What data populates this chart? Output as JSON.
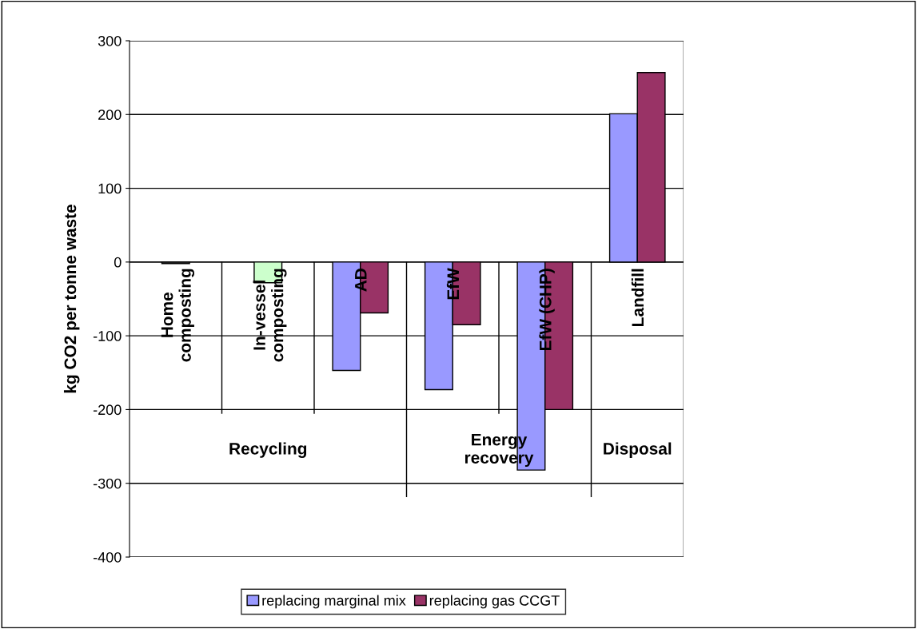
{
  "chart_data": {
    "type": "bar",
    "ylabel": "kg CO2 per tonne waste",
    "categories": [
      "Home\ncomposting",
      "In-vessel\ncomposting",
      "AD",
      "EfW",
      "EfW (CHP)",
      "Landfill"
    ],
    "series": [
      {
        "name": "replacing marginal mix",
        "color": "#9999ff",
        "values": [
          null,
          null,
          -147,
          -173,
          -282,
          201
        ]
      },
      {
        "name": "replacing gas CCGT",
        "color": "#993366",
        "values": [
          null,
          null,
          -69,
          -85,
          -200,
          257
        ]
      },
      {
        "colors": [
          "#333333",
          "#ccffcc",
          null,
          null,
          null,
          null
        ],
        "values": [
          -2,
          -28,
          null,
          null,
          null,
          null
        ]
      }
    ],
    "ylim": [
      -400,
      300
    ],
    "yticks": [
      -400,
      -300,
      -200,
      -100,
      0,
      100,
      200,
      300
    ],
    "grid": "y",
    "legend": "bottom",
    "annotations": [
      "Recycling",
      "Energy\nrecovery",
      "Disposal"
    ]
  }
}
